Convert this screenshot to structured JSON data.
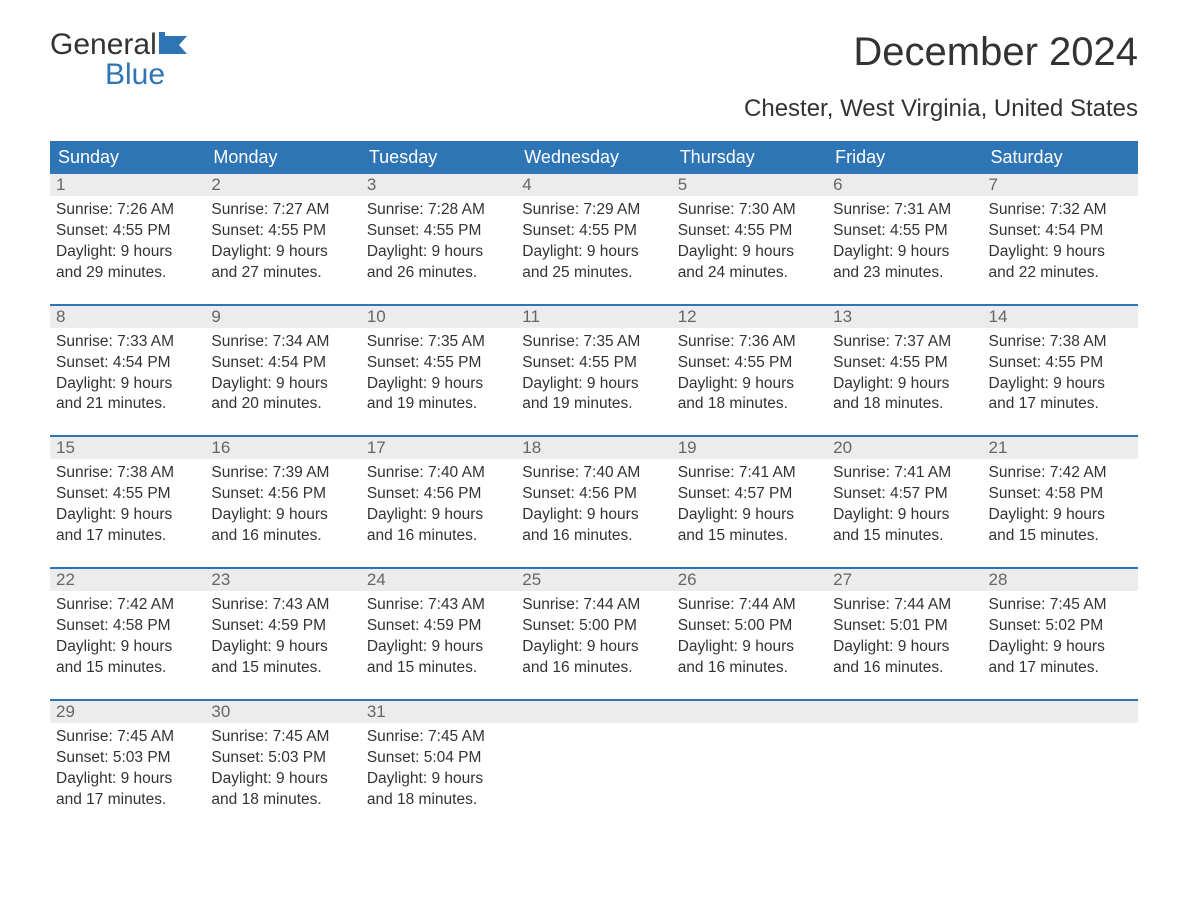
{
  "logo": {
    "word1": "General",
    "word2": "Blue"
  },
  "title": "December 2024",
  "subtitle": "Chester, West Virginia, United States",
  "colors": {
    "header_bg": "#2e75b6",
    "header_text": "#ffffff",
    "daynum_bg": "#ececec",
    "daynum_text": "#666666",
    "body_text": "#333333",
    "accent": "#2e75b6"
  },
  "day_names": [
    "Sunday",
    "Monday",
    "Tuesday",
    "Wednesday",
    "Thursday",
    "Friday",
    "Saturday"
  ],
  "weeks": [
    [
      {
        "n": "1",
        "sr": "Sunrise: 7:26 AM",
        "ss": "Sunset: 4:55 PM",
        "d1": "Daylight: 9 hours",
        "d2": "and 29 minutes."
      },
      {
        "n": "2",
        "sr": "Sunrise: 7:27 AM",
        "ss": "Sunset: 4:55 PM",
        "d1": "Daylight: 9 hours",
        "d2": "and 27 minutes."
      },
      {
        "n": "3",
        "sr": "Sunrise: 7:28 AM",
        "ss": "Sunset: 4:55 PM",
        "d1": "Daylight: 9 hours",
        "d2": "and 26 minutes."
      },
      {
        "n": "4",
        "sr": "Sunrise: 7:29 AM",
        "ss": "Sunset: 4:55 PM",
        "d1": "Daylight: 9 hours",
        "d2": "and 25 minutes."
      },
      {
        "n": "5",
        "sr": "Sunrise: 7:30 AM",
        "ss": "Sunset: 4:55 PM",
        "d1": "Daylight: 9 hours",
        "d2": "and 24 minutes."
      },
      {
        "n": "6",
        "sr": "Sunrise: 7:31 AM",
        "ss": "Sunset: 4:55 PM",
        "d1": "Daylight: 9 hours",
        "d2": "and 23 minutes."
      },
      {
        "n": "7",
        "sr": "Sunrise: 7:32 AM",
        "ss": "Sunset: 4:54 PM",
        "d1": "Daylight: 9 hours",
        "d2": "and 22 minutes."
      }
    ],
    [
      {
        "n": "8",
        "sr": "Sunrise: 7:33 AM",
        "ss": "Sunset: 4:54 PM",
        "d1": "Daylight: 9 hours",
        "d2": "and 21 minutes."
      },
      {
        "n": "9",
        "sr": "Sunrise: 7:34 AM",
        "ss": "Sunset: 4:54 PM",
        "d1": "Daylight: 9 hours",
        "d2": "and 20 minutes."
      },
      {
        "n": "10",
        "sr": "Sunrise: 7:35 AM",
        "ss": "Sunset: 4:55 PM",
        "d1": "Daylight: 9 hours",
        "d2": "and 19 minutes."
      },
      {
        "n": "11",
        "sr": "Sunrise: 7:35 AM",
        "ss": "Sunset: 4:55 PM",
        "d1": "Daylight: 9 hours",
        "d2": "and 19 minutes."
      },
      {
        "n": "12",
        "sr": "Sunrise: 7:36 AM",
        "ss": "Sunset: 4:55 PM",
        "d1": "Daylight: 9 hours",
        "d2": "and 18 minutes."
      },
      {
        "n": "13",
        "sr": "Sunrise: 7:37 AM",
        "ss": "Sunset: 4:55 PM",
        "d1": "Daylight: 9 hours",
        "d2": "and 18 minutes."
      },
      {
        "n": "14",
        "sr": "Sunrise: 7:38 AM",
        "ss": "Sunset: 4:55 PM",
        "d1": "Daylight: 9 hours",
        "d2": "and 17 minutes."
      }
    ],
    [
      {
        "n": "15",
        "sr": "Sunrise: 7:38 AM",
        "ss": "Sunset: 4:55 PM",
        "d1": "Daylight: 9 hours",
        "d2": "and 17 minutes."
      },
      {
        "n": "16",
        "sr": "Sunrise: 7:39 AM",
        "ss": "Sunset: 4:56 PM",
        "d1": "Daylight: 9 hours",
        "d2": "and 16 minutes."
      },
      {
        "n": "17",
        "sr": "Sunrise: 7:40 AM",
        "ss": "Sunset: 4:56 PM",
        "d1": "Daylight: 9 hours",
        "d2": "and 16 minutes."
      },
      {
        "n": "18",
        "sr": "Sunrise: 7:40 AM",
        "ss": "Sunset: 4:56 PM",
        "d1": "Daylight: 9 hours",
        "d2": "and 16 minutes."
      },
      {
        "n": "19",
        "sr": "Sunrise: 7:41 AM",
        "ss": "Sunset: 4:57 PM",
        "d1": "Daylight: 9 hours",
        "d2": "and 15 minutes."
      },
      {
        "n": "20",
        "sr": "Sunrise: 7:41 AM",
        "ss": "Sunset: 4:57 PM",
        "d1": "Daylight: 9 hours",
        "d2": "and 15 minutes."
      },
      {
        "n": "21",
        "sr": "Sunrise: 7:42 AM",
        "ss": "Sunset: 4:58 PM",
        "d1": "Daylight: 9 hours",
        "d2": "and 15 minutes."
      }
    ],
    [
      {
        "n": "22",
        "sr": "Sunrise: 7:42 AM",
        "ss": "Sunset: 4:58 PM",
        "d1": "Daylight: 9 hours",
        "d2": "and 15 minutes."
      },
      {
        "n": "23",
        "sr": "Sunrise: 7:43 AM",
        "ss": "Sunset: 4:59 PM",
        "d1": "Daylight: 9 hours",
        "d2": "and 15 minutes."
      },
      {
        "n": "24",
        "sr": "Sunrise: 7:43 AM",
        "ss": "Sunset: 4:59 PM",
        "d1": "Daylight: 9 hours",
        "d2": "and 15 minutes."
      },
      {
        "n": "25",
        "sr": "Sunrise: 7:44 AM",
        "ss": "Sunset: 5:00 PM",
        "d1": "Daylight: 9 hours",
        "d2": "and 16 minutes."
      },
      {
        "n": "26",
        "sr": "Sunrise: 7:44 AM",
        "ss": "Sunset: 5:00 PM",
        "d1": "Daylight: 9 hours",
        "d2": "and 16 minutes."
      },
      {
        "n": "27",
        "sr": "Sunrise: 7:44 AM",
        "ss": "Sunset: 5:01 PM",
        "d1": "Daylight: 9 hours",
        "d2": "and 16 minutes."
      },
      {
        "n": "28",
        "sr": "Sunrise: 7:45 AM",
        "ss": "Sunset: 5:02 PM",
        "d1": "Daylight: 9 hours",
        "d2": "and 17 minutes."
      }
    ],
    [
      {
        "n": "29",
        "sr": "Sunrise: 7:45 AM",
        "ss": "Sunset: 5:03 PM",
        "d1": "Daylight: 9 hours",
        "d2": "and 17 minutes."
      },
      {
        "n": "30",
        "sr": "Sunrise: 7:45 AM",
        "ss": "Sunset: 5:03 PM",
        "d1": "Daylight: 9 hours",
        "d2": "and 18 minutes."
      },
      {
        "n": "31",
        "sr": "Sunrise: 7:45 AM",
        "ss": "Sunset: 5:04 PM",
        "d1": "Daylight: 9 hours",
        "d2": "and 18 minutes."
      },
      {
        "empty": true
      },
      {
        "empty": true
      },
      {
        "empty": true
      },
      {
        "empty": true
      }
    ]
  ]
}
